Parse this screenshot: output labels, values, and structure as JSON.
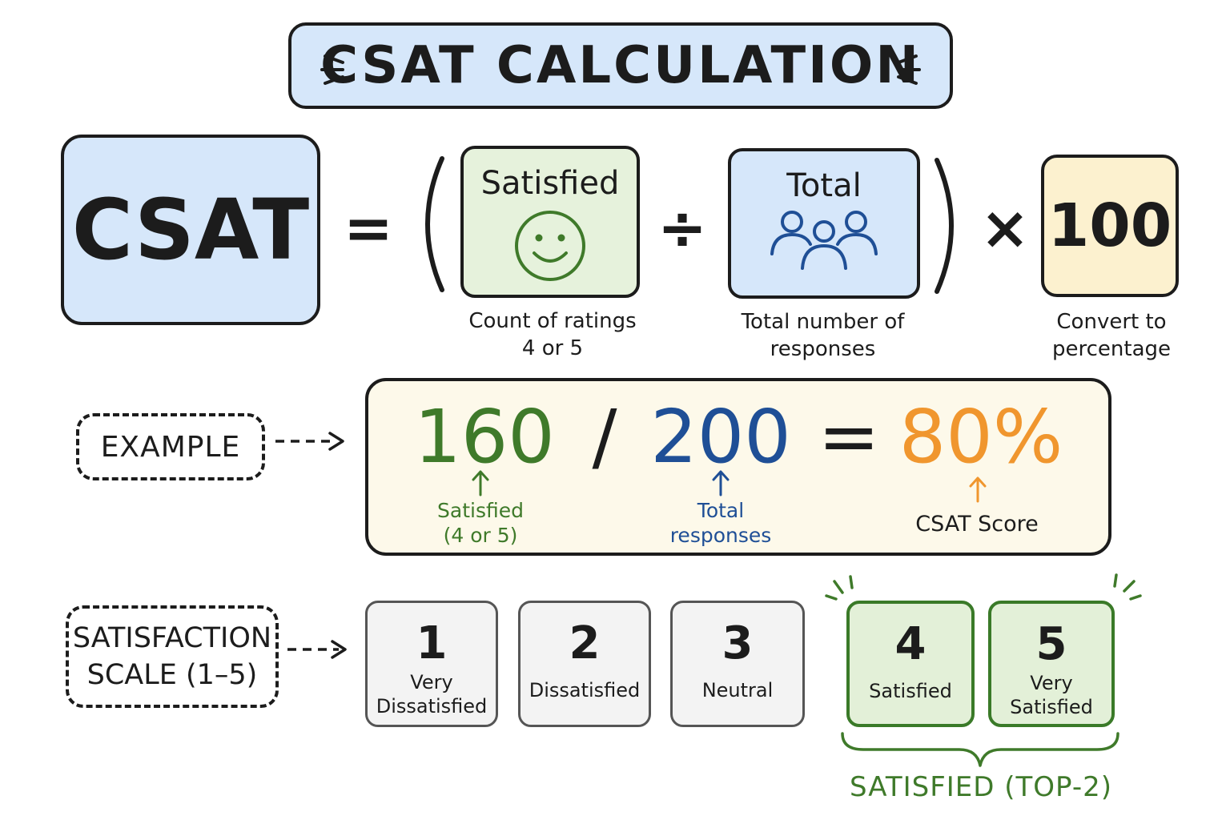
{
  "title": "CSAT CALCULATION",
  "formula": {
    "lhs": "CSAT",
    "equals": "=",
    "open_paren": "(",
    "close_paren": ")",
    "divide": "÷",
    "times": "×",
    "satisfied": {
      "title": "Satisfied",
      "icon": "smiley-face-icon",
      "caption_line1": "Count of ratings",
      "caption_line2": "4 or 5"
    },
    "total": {
      "title": "Total",
      "icon": "people-group-icon",
      "caption_line1": "Total number of",
      "caption_line2": "responses"
    },
    "multiplier": {
      "value": "100",
      "caption_line1": "Convert to",
      "caption_line2": "percentage"
    }
  },
  "example": {
    "tag": "EXAMPLE",
    "satisfied_value": "160",
    "slash": "/",
    "total_value": "200",
    "equals": "=",
    "result": "80%",
    "satisfied_note_line1": "Satisfied",
    "satisfied_note_line2": "(4 or 5)",
    "total_note_line1": "Total",
    "total_note_line2": "responses",
    "result_note": "CSAT Score"
  },
  "scale": {
    "tag_line1": "SATISFACTION",
    "tag_line2": "SCALE (1–5)",
    "items": [
      {
        "num": "1",
        "label_line1": "Very",
        "label_line2": "Dissatisfied"
      },
      {
        "num": "2",
        "label_line1": "Dissatisfied",
        "label_line2": ""
      },
      {
        "num": "3",
        "label_line1": "Neutral",
        "label_line2": ""
      },
      {
        "num": "4",
        "label_line1": "Satisfied",
        "label_line2": ""
      },
      {
        "num": "5",
        "label_line1": "Very",
        "label_line2": "Satisfied"
      }
    ],
    "top2_label": "SATISFIED (TOP-2)"
  },
  "colors": {
    "blue_fill": "#d6e7fa",
    "green_fill": "#e6f2dc",
    "yellow_fill": "#fcf1cf",
    "green_text": "#3f7a2a",
    "blue_text": "#1f4f96",
    "orange_text": "#f0962e"
  }
}
